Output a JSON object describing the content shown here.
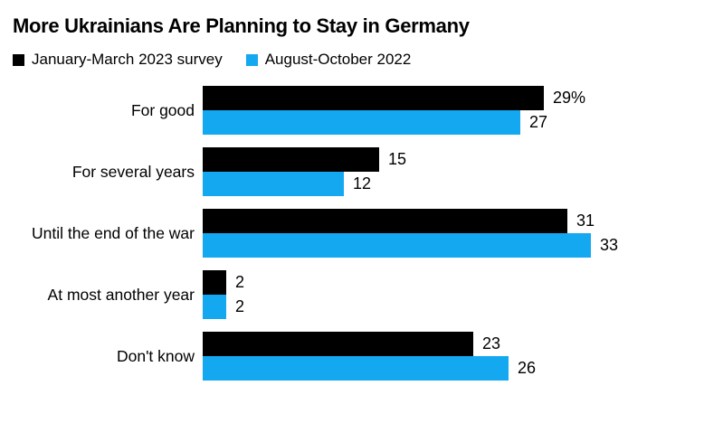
{
  "title": "More Ukrainians Are Planning to Stay in Germany",
  "legend": {
    "items": [
      {
        "label": "January-March 2023 survey",
        "color": "#000000"
      },
      {
        "label": "August-October 2022",
        "color": "#14a8f0"
      }
    ]
  },
  "chart_data": {
    "type": "bar",
    "orientation": "horizontal",
    "title": "More Ukrainians Are Planning to Stay in Germany",
    "unit": "percent",
    "xlim": [
      0,
      35
    ],
    "grid": false,
    "legend_position": "top",
    "categories": [
      "For good",
      "For several years",
      "Until the end of the war",
      "At most another year",
      "Don't know"
    ],
    "series": [
      {
        "name": "January-March 2023 survey",
        "color": "#000000",
        "values": [
          29,
          15,
          31,
          2,
          23
        ],
        "value_labels": [
          "29%",
          "15",
          "31",
          "2",
          "23"
        ]
      },
      {
        "name": "August-October 2022",
        "color": "#14a8f0",
        "values": [
          27,
          12,
          33,
          2,
          26
        ],
        "value_labels": [
          "27",
          "12",
          "33",
          "2",
          "26"
        ]
      }
    ]
  }
}
